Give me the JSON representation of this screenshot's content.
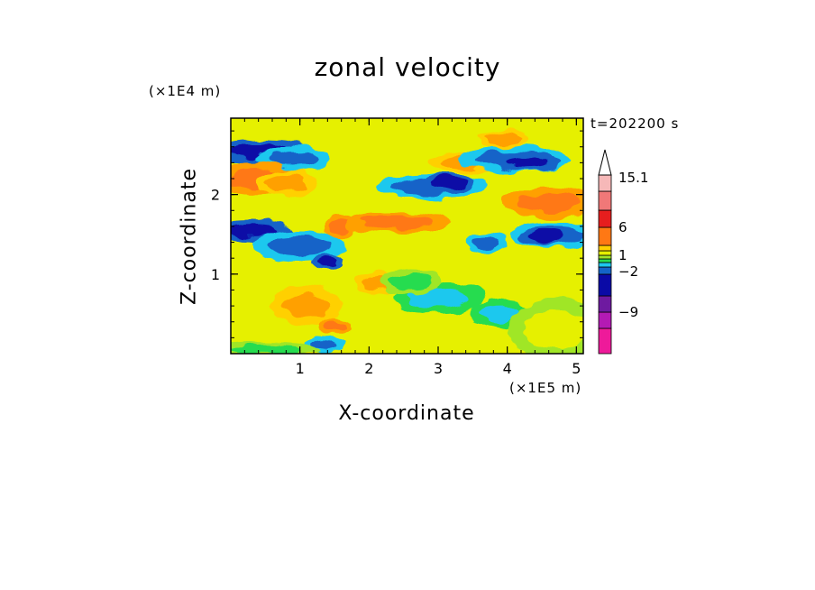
{
  "chart_data": {
    "type": "heatmap",
    "title": "zonal velocity",
    "time_label": "t=202200 s",
    "xlabel": "X-coordinate",
    "ylabel": "Z-coordinate",
    "x_unit": "(×1E5 m)",
    "z_unit": "(×1E4 m)",
    "xlim": [
      0,
      5.1
    ],
    "ylim": [
      0,
      2.96
    ],
    "x_ticks": [
      "1",
      "2",
      "3",
      "4",
      "5"
    ],
    "y_ticks": [
      "1",
      "2"
    ],
    "colorbar": {
      "levels_low_to_high": [
        "#ee1a9a",
        "#b41ab4",
        "#6e1aa0",
        "#0a0aa6",
        "#1464c8",
        "#1ec8ee",
        "#28dc50",
        "#a0e628",
        "#e6f000",
        "#ffd000",
        "#ffa000",
        "#ff7814",
        "#e61e1e",
        "#f07878",
        "#f6b8b8"
      ],
      "tick_labels": [
        "15.1",
        "6",
        "1",
        "−2",
        "−9"
      ],
      "extend_max": true
    },
    "background_color": "#e6f000",
    "features": [
      {
        "x": 0.4,
        "z": 2.55,
        "value_level": 3,
        "rx": 0.45,
        "rz": 0.1
      },
      {
        "x": 0.9,
        "z": 2.45,
        "value_level": 4,
        "rx": 0.35,
        "rz": 0.1
      },
      {
        "x": 0.35,
        "z": 2.2,
        "value_level": 11,
        "rx": 0.4,
        "rz": 0.13
      },
      {
        "x": 0.8,
        "z": 2.15,
        "value_level": 10,
        "rx": 0.3,
        "rz": 0.1
      },
      {
        "x": 0.3,
        "z": 1.55,
        "value_level": 3,
        "rx": 0.4,
        "rz": 0.08
      },
      {
        "x": 1.0,
        "z": 1.35,
        "value_level": 4,
        "rx": 0.45,
        "rz": 0.12
      },
      {
        "x": 1.4,
        "z": 1.15,
        "value_level": 3,
        "rx": 0.15,
        "rz": 0.06
      },
      {
        "x": 1.1,
        "z": 0.6,
        "value_level": 10,
        "rx": 0.35,
        "rz": 0.15
      },
      {
        "x": 1.5,
        "z": 0.35,
        "value_level": 11,
        "rx": 0.15,
        "rz": 0.07
      },
      {
        "x": 1.35,
        "z": 0.12,
        "value_level": 4,
        "rx": 0.2,
        "rz": 0.06
      },
      {
        "x": 1.6,
        "z": 1.6,
        "value_level": 11,
        "rx": 0.15,
        "rz": 0.1
      },
      {
        "x": 2.9,
        "z": 2.1,
        "value_level": 4,
        "rx": 0.55,
        "rz": 0.1
      },
      {
        "x": 3.15,
        "z": 2.15,
        "value_level": 3,
        "rx": 0.25,
        "rz": 0.07
      },
      {
        "x": 2.4,
        "z": 1.65,
        "value_level": 11,
        "rx": 0.5,
        "rz": 0.08
      },
      {
        "x": 3.4,
        "z": 2.4,
        "value_level": 10,
        "rx": 0.35,
        "rz": 0.08
      },
      {
        "x": 4.1,
        "z": 2.45,
        "value_level": 4,
        "rx": 0.55,
        "rz": 0.1
      },
      {
        "x": 4.3,
        "z": 2.4,
        "value_level": 3,
        "rx": 0.3,
        "rz": 0.06
      },
      {
        "x": 3.95,
        "z": 2.7,
        "value_level": 10,
        "rx": 0.25,
        "rz": 0.07
      },
      {
        "x": 4.6,
        "z": 1.9,
        "value_level": 11,
        "rx": 0.45,
        "rz": 0.12
      },
      {
        "x": 4.7,
        "z": 1.5,
        "value_level": 4,
        "rx": 0.45,
        "rz": 0.1
      },
      {
        "x": 4.55,
        "z": 1.48,
        "value_level": 3,
        "rx": 0.25,
        "rz": 0.06
      },
      {
        "x": 3.7,
        "z": 1.4,
        "value_level": 4,
        "rx": 0.2,
        "rz": 0.08
      },
      {
        "x": 3.0,
        "z": 0.7,
        "value_level": 5,
        "rx": 0.45,
        "rz": 0.12
      },
      {
        "x": 3.9,
        "z": 0.5,
        "value_level": 5,
        "rx": 0.3,
        "rz": 0.1
      },
      {
        "x": 2.1,
        "z": 0.9,
        "value_level": 10,
        "rx": 0.2,
        "rz": 0.1
      },
      {
        "x": 2.6,
        "z": 0.9,
        "value_level": 6,
        "rx": 0.3,
        "rz": 0.1
      },
      {
        "x": 0.5,
        "z": 0.05,
        "value_level": 6,
        "rx": 0.5,
        "rz": 0.06
      },
      {
        "x": 4.7,
        "z": 0.3,
        "value_level": 8,
        "rx": 0.45,
        "rz": 0.25
      }
    ]
  }
}
